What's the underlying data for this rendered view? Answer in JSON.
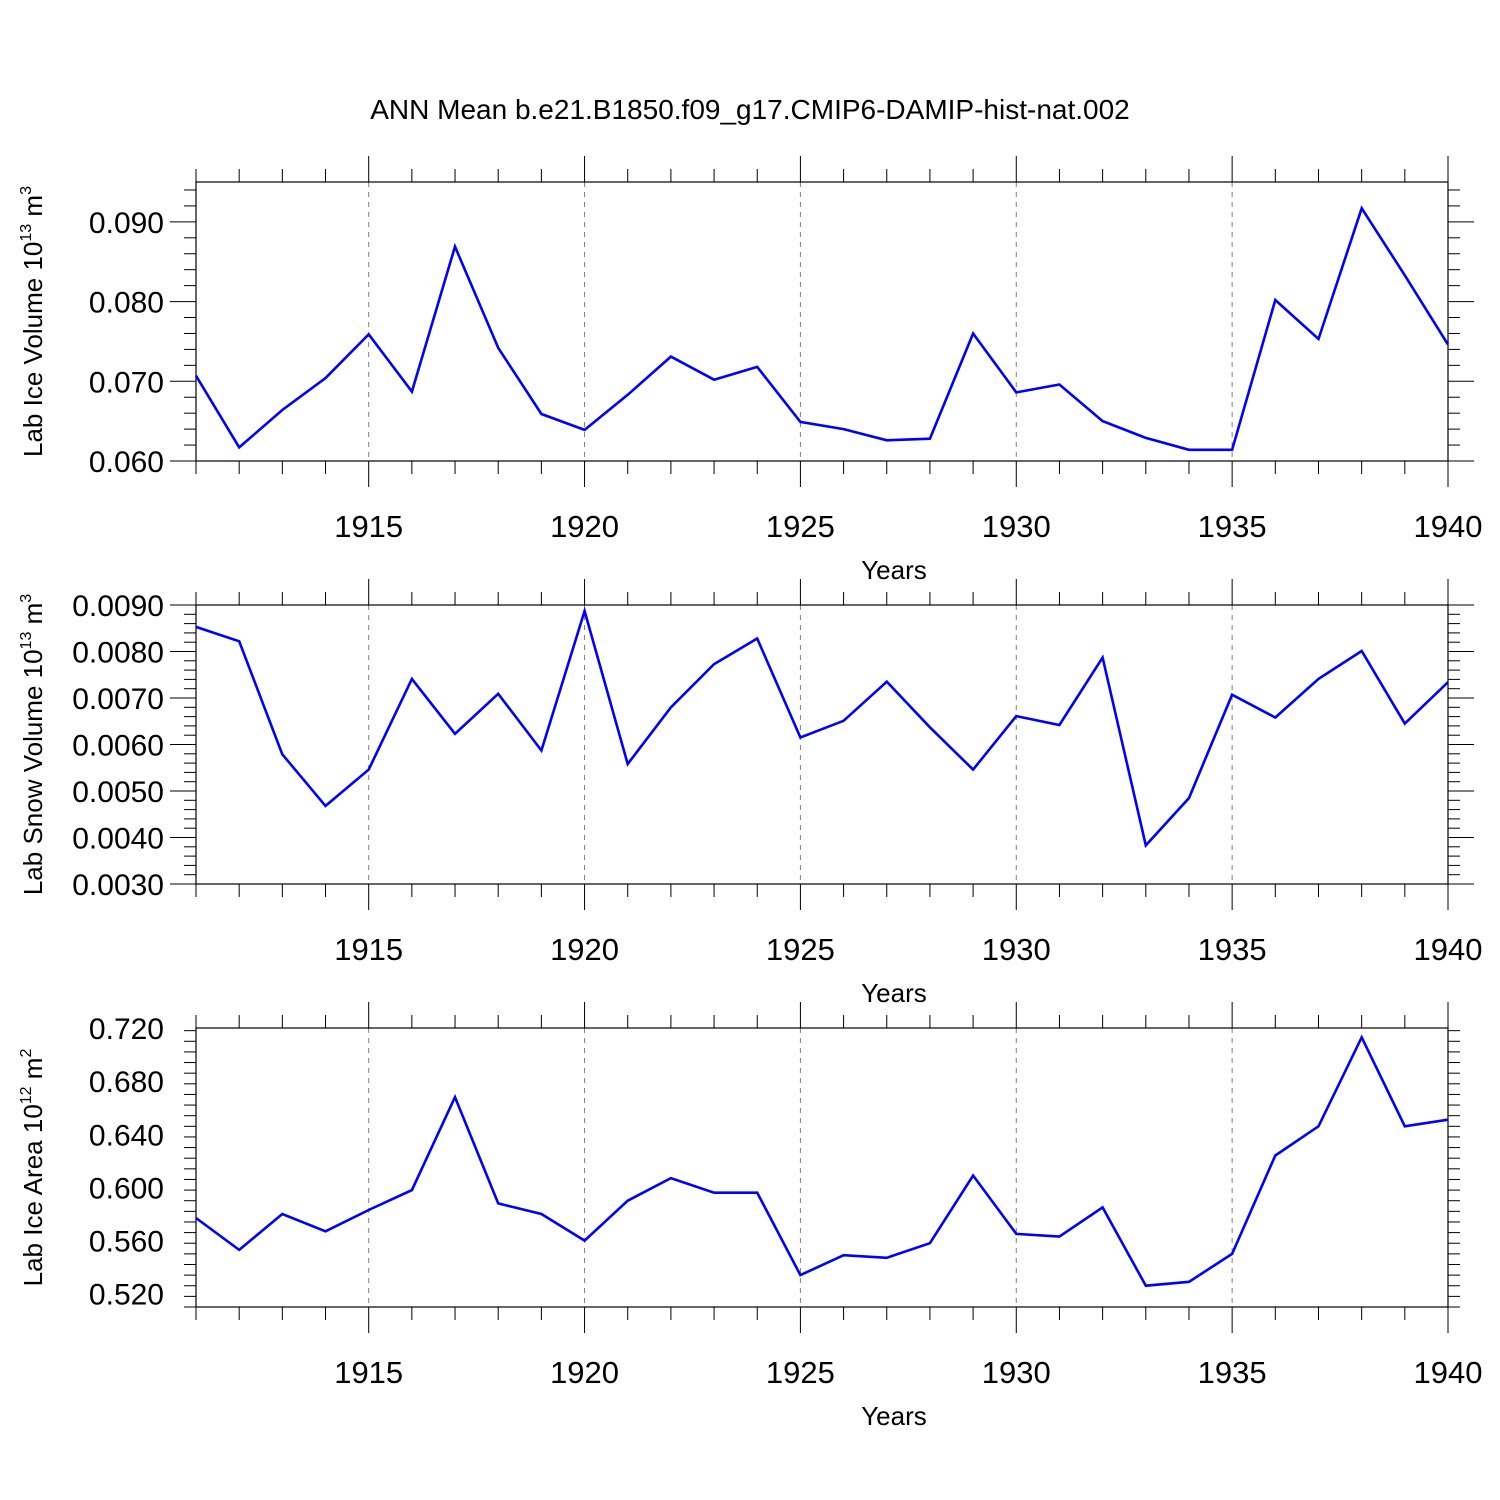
{
  "title": "ANN Mean b.e21.B1850.f09_g17.CMIP6-DAMIP-hist-nat.002",
  "colors": {
    "line": "#0000ff",
    "grid": "#808080",
    "axis": "#000000",
    "background": "#ffffff"
  },
  "chart_data": [
    {
      "type": "line",
      "title": "ANN Mean b.e21.B1850.f09_g17.CMIP6-DAMIP-hist-nat.002",
      "xlabel": "Years",
      "ylabel": {
        "main": "Lab Ice Volume 10",
        "exponent": "13",
        "unit": " m",
        "unit_exponent": "3"
      },
      "xlim": [
        1911,
        1940
      ],
      "ylim": [
        0.06,
        0.095
      ],
      "x_ticks": [
        1915,
        1920,
        1925,
        1930,
        1935,
        1940
      ],
      "y_ticks": [
        0.06,
        0.07,
        0.08,
        0.09
      ],
      "y_tick_labels": [
        "0.060",
        "0.070",
        "0.080",
        "0.090"
      ],
      "grid": "dashed vertical at labeled years",
      "x": [
        1911,
        1912,
        1913,
        1914,
        1915,
        1916,
        1917,
        1918,
        1919,
        1920,
        1921,
        1922,
        1923,
        1924,
        1925,
        1926,
        1927,
        1928,
        1929,
        1930,
        1931,
        1932,
        1933,
        1934,
        1935,
        1936,
        1937,
        1938,
        1939,
        1940
      ],
      "values": [
        0.0707,
        0.0617,
        0.0664,
        0.0704,
        0.0759,
        0.0687,
        0.0869,
        0.0742,
        0.0659,
        0.0639,
        0.0683,
        0.0731,
        0.0702,
        0.0718,
        0.0649,
        0.064,
        0.0626,
        0.0628,
        0.076,
        0.0686,
        0.0696,
        0.065,
        0.0629,
        0.0614,
        0.0614,
        0.0802,
        0.0753,
        0.0917,
        0.0833,
        0.0746
      ]
    },
    {
      "type": "line",
      "xlabel": "Years",
      "ylabel": {
        "main": "Lab Snow Volume 10",
        "exponent": "13",
        "unit": " m",
        "unit_exponent": "3"
      },
      "xlim": [
        1911,
        1940
      ],
      "ylim": [
        0.003,
        0.009
      ],
      "x_ticks": [
        1915,
        1920,
        1925,
        1930,
        1935,
        1940
      ],
      "y_ticks": [
        0.003,
        0.004,
        0.005,
        0.006,
        0.007,
        0.008,
        0.009
      ],
      "y_tick_labels": [
        "0.0030",
        "0.0040",
        "0.0050",
        "0.0060",
        "0.0070",
        "0.0080",
        "0.0090"
      ],
      "grid": "dashed vertical at labeled years",
      "x": [
        1911,
        1912,
        1913,
        1914,
        1915,
        1916,
        1917,
        1918,
        1919,
        1920,
        1921,
        1922,
        1923,
        1924,
        1925,
        1926,
        1927,
        1928,
        1929,
        1930,
        1931,
        1932,
        1933,
        1934,
        1935,
        1936,
        1937,
        1938,
        1939,
        1940
      ],
      "values": [
        0.00853,
        0.00822,
        0.00579,
        0.00468,
        0.00546,
        0.00741,
        0.00623,
        0.00709,
        0.00587,
        0.00887,
        0.00558,
        0.0068,
        0.00773,
        0.00828,
        0.00615,
        0.00651,
        0.00735,
        0.00637,
        0.00546,
        0.00661,
        0.00642,
        0.00787,
        0.00383,
        0.00485,
        0.00707,
        0.00658,
        0.00741,
        0.00801,
        0.00645,
        0.00734
      ]
    },
    {
      "type": "line",
      "xlabel": "Years",
      "ylabel": {
        "main": "Lab Ice Area 10",
        "exponent": "12",
        "unit": " m",
        "unit_exponent": "2"
      },
      "xlim": [
        1911,
        1940
      ],
      "ylim": [
        0.51,
        0.72
      ],
      "x_ticks": [
        1915,
        1920,
        1925,
        1930,
        1935,
        1940
      ],
      "y_ticks": [
        0.52,
        0.56,
        0.6,
        0.64,
        0.68,
        0.72
      ],
      "y_tick_labels": [
        "0.520",
        "0.560",
        "0.600",
        "0.640",
        "0.680",
        "0.720"
      ],
      "grid": "dashed vertical at labeled years",
      "x": [
        1911,
        1912,
        1913,
        1914,
        1915,
        1916,
        1917,
        1918,
        1919,
        1920,
        1921,
        1922,
        1923,
        1924,
        1925,
        1926,
        1927,
        1928,
        1929,
        1930,
        1931,
        1932,
        1933,
        1934,
        1935,
        1936,
        1937,
        1938,
        1939,
        1940
      ],
      "values": [
        0.577,
        0.553,
        0.58,
        0.567,
        0.583,
        0.598,
        0.668,
        0.588,
        0.58,
        0.56,
        0.59,
        0.607,
        0.596,
        0.596,
        0.534,
        0.549,
        0.547,
        0.558,
        0.609,
        0.565,
        0.563,
        0.585,
        0.526,
        0.529,
        0.55,
        0.624,
        0.646,
        0.713,
        0.646,
        0.651
      ]
    }
  ]
}
